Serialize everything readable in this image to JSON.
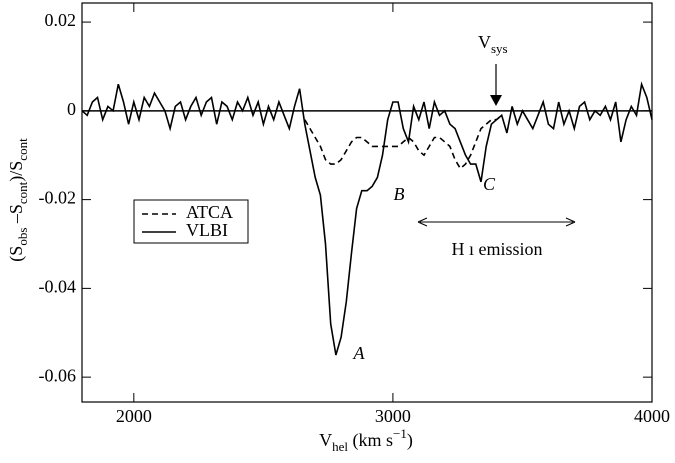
{
  "chart_data": {
    "type": "line",
    "x_label": [
      "V",
      "hel",
      " (km s",
      "−1",
      ")"
    ],
    "y_label": [
      "(S",
      "obs",
      " –S",
      "cont",
      ")/S",
      "cont"
    ],
    "xlim": [
      1800,
      4000
    ],
    "xticks": [
      2000,
      3000,
      4000
    ],
    "ylim": [
      -0.0656,
      0.0243
    ],
    "yticks": [
      0.02,
      0,
      -0.02,
      -0.04,
      -0.06
    ],
    "zero_line": 0,
    "series": [
      {
        "name": "ATCA",
        "color": "#000000",
        "dash": true,
        "x": [
          2660,
          2680,
          2700,
          2720,
          2740,
          2760,
          2780,
          2800,
          2820,
          2840,
          2860,
          2880,
          2900,
          2920,
          2940,
          2960,
          2980,
          3000,
          3020,
          3040,
          3060,
          3080,
          3100,
          3120,
          3140,
          3160,
          3180,
          3200,
          3220,
          3240,
          3260,
          3280,
          3300,
          3320,
          3340,
          3360,
          3380,
          3400,
          3420
        ],
        "values": [
          -0.002,
          -0.004,
          -0.006,
          -0.008,
          -0.011,
          -0.012,
          -0.012,
          -0.011,
          -0.009,
          -0.007,
          -0.006,
          -0.006,
          -0.007,
          -0.008,
          -0.008,
          -0.008,
          -0.008,
          -0.008,
          -0.008,
          -0.007,
          -0.006,
          -0.007,
          -0.009,
          -0.01,
          -0.008,
          -0.006,
          -0.006,
          -0.007,
          -0.008,
          -0.011,
          -0.013,
          -0.012,
          -0.01,
          -0.007,
          -0.004,
          -0.003,
          -0.002,
          -0.002,
          -0.001
        ]
      },
      {
        "name": "VLBI",
        "color": "#000000",
        "dash": false,
        "x": [
          1800,
          1820,
          1840,
          1860,
          1880,
          1900,
          1920,
          1940,
          1960,
          1980,
          2000,
          2020,
          2040,
          2060,
          2080,
          2100,
          2120,
          2140,
          2160,
          2180,
          2200,
          2220,
          2240,
          2260,
          2280,
          2300,
          2320,
          2340,
          2360,
          2380,
          2400,
          2420,
          2440,
          2460,
          2480,
          2500,
          2520,
          2540,
          2560,
          2580,
          2600,
          2620,
          2640,
          2660,
          2680,
          2700,
          2720,
          2740,
          2760,
          2780,
          2800,
          2820,
          2840,
          2860,
          2880,
          2900,
          2920,
          2940,
          2960,
          2980,
          3000,
          3020,
          3040,
          3060,
          3080,
          3100,
          3120,
          3140,
          3160,
          3180,
          3200,
          3220,
          3240,
          3260,
          3280,
          3300,
          3320,
          3340,
          3360,
          3380,
          3400,
          3420,
          3440,
          3460,
          3480,
          3500,
          3520,
          3540,
          3560,
          3580,
          3600,
          3620,
          3640,
          3660,
          3680,
          3700,
          3720,
          3740,
          3760,
          3780,
          3800,
          3820,
          3840,
          3860,
          3880,
          3900,
          3920,
          3940,
          3960,
          3980,
          4000
        ],
        "values": [
          0,
          -0.001,
          0.002,
          0.003,
          -0.002,
          0.001,
          0,
          0.006,
          0.002,
          -0.003,
          0.002,
          -0.002,
          0.003,
          0.001,
          0.004,
          0.002,
          0,
          -0.004,
          0.001,
          0.002,
          -0.002,
          0.001,
          0.003,
          -0.001,
          0.002,
          0.003,
          -0.003,
          0.002,
          0.001,
          -0.002,
          0.002,
          0,
          0.003,
          -0.001,
          0.002,
          -0.003,
          0.001,
          -0.002,
          0.002,
          -0.001,
          -0.004,
          0.001,
          0.005,
          -0.003,
          -0.009,
          -0.015,
          -0.019,
          -0.03,
          -0.048,
          -0.055,
          -0.051,
          -0.043,
          -0.032,
          -0.022,
          -0.018,
          -0.018,
          -0.017,
          -0.015,
          -0.01,
          -0.002,
          0.002,
          0.002,
          -0.004,
          -0.007,
          0.001,
          -0.002,
          0.002,
          -0.004,
          0.002,
          -0.001,
          0,
          -0.003,
          -0.004,
          -0.007,
          -0.01,
          -0.012,
          -0.012,
          -0.016,
          -0.008,
          -0.003,
          -0.002,
          -0.001,
          -0.005,
          0.001,
          -0.003,
          0,
          -0.002,
          -0.004,
          -0.001,
          0.002,
          -0.003,
          -0.004,
          0.002,
          -0.003,
          0,
          -0.004,
          0.001,
          0.002,
          -0.002,
          0,
          -0.001,
          0.001,
          -0.002,
          0.002,
          -0.007,
          -0.002,
          0.001,
          -0.001,
          0.006,
          0.003,
          -0.002
        ]
      }
    ],
    "annotations": [
      "A",
      "B",
      "C",
      "H ı emission"
    ],
    "vsys_label": [
      "V",
      "sys"
    ]
  }
}
